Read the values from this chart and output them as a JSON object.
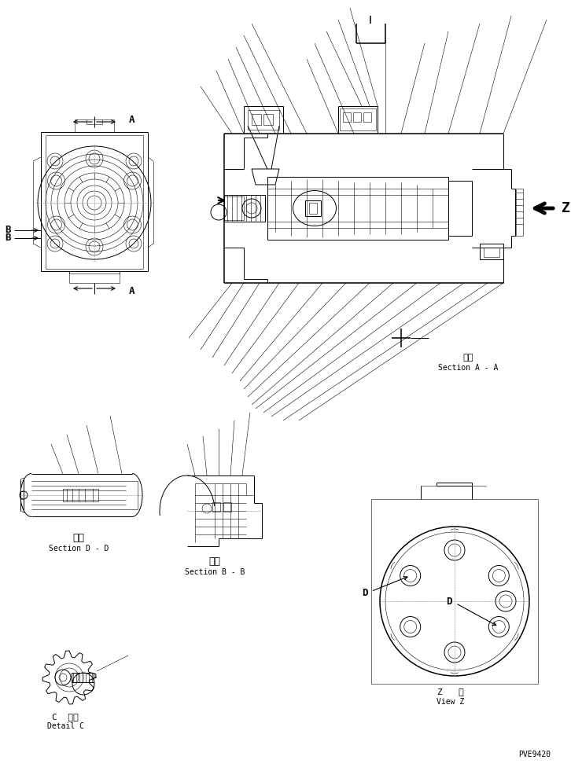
{
  "bg_color": "#ffffff",
  "line_color": "#000000",
  "fig_width": 7.26,
  "fig_height": 9.81,
  "dpi": 100,
  "labels": {
    "section_aa_1": "断面",
    "section_aa_2": "Section A - A",
    "section_dd_1": "断面",
    "section_dd_2": "Section D - D",
    "section_bb_1": "断面",
    "section_bb_2": "Section B - B",
    "detail_c_1": "C  詳細",
    "detail_c_2": "Detail C",
    "view_z_1": "Z   視",
    "view_z_2": "View Z",
    "part_number": "PVE9420",
    "A": "A",
    "B": "B",
    "Z": "Z",
    "D": "D"
  },
  "font_size_small": 6.5,
  "font_size_label": 9,
  "font_size_z": 13,
  "font_size_pn": 7
}
